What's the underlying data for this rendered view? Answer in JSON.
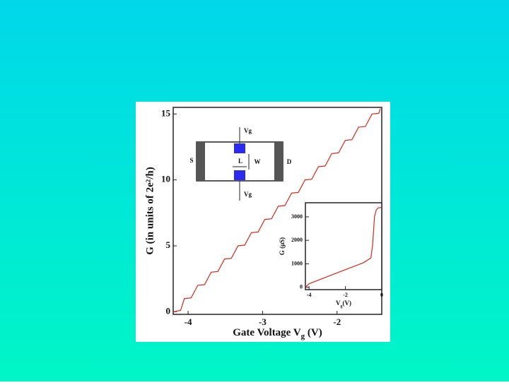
{
  "chart_data": [
    {
      "type": "line",
      "x_label": {
        "text": "Gate Voltage V",
        "sub": "g",
        "tail": " (V)"
      },
      "y_label": "G (in units of 2e²/h)",
      "xlim": [
        -4.2,
        -1.4
      ],
      "ylim": [
        -0.2,
        15.5
      ],
      "xticks": [
        -4,
        -3,
        -2
      ],
      "yticks": [
        0,
        5,
        10,
        15
      ],
      "x": [
        -4.2,
        -4.1,
        -4.05,
        -3.96,
        -3.87,
        -3.78,
        -3.69,
        -3.6,
        -3.51,
        -3.42,
        -3.33,
        -3.24,
        -3.15,
        -3.06,
        -2.97,
        -2.88,
        -2.79,
        -2.7,
        -2.61,
        -2.52,
        -2.43,
        -2.34,
        -2.25,
        -2.16,
        -2.07,
        -1.98,
        -1.89,
        -1.8,
        -1.71,
        -1.62,
        -1.53,
        -1.44,
        -1.42
      ],
      "series": [
        {
          "color": "#d42a1a",
          "values": [
            0,
            0.1,
            1,
            1.05,
            2,
            2.05,
            3,
            3.05,
            4,
            4.05,
            5,
            5.05,
            6,
            6.05,
            7,
            7.05,
            8,
            8.05,
            9,
            9.05,
            10,
            10.05,
            11,
            11.05,
            12,
            12.05,
            13,
            13.05,
            14,
            14.05,
            15,
            15.05,
            15.4
          ]
        }
      ]
    },
    {
      "type": "line",
      "x_label": {
        "text": "V",
        "sub": "g",
        "tail": "(V)"
      },
      "y_label": "G (μS)",
      "xlim": [
        -4.2,
        0
      ],
      "ylim": [
        -100,
        3600
      ],
      "xticks": [
        -4,
        -2,
        0
      ],
      "yticks": [
        0,
        1000,
        2000,
        3000
      ],
      "x": [
        -4.2,
        -4,
        -3,
        -2,
        -1,
        -0.6,
        -0.5,
        -0.4,
        -0.3,
        -0.2,
        0
      ],
      "series": [
        {
          "color": "#d42a1a",
          "values": [
            0,
            150,
            450,
            750,
            1050,
            1250,
            1800,
            3000,
            3300,
            3380,
            3400
          ]
        }
      ]
    }
  ],
  "inset_diagram": {
    "labels": [
      "Vg",
      "S",
      "D",
      "L",
      "W",
      "Vg"
    ]
  }
}
